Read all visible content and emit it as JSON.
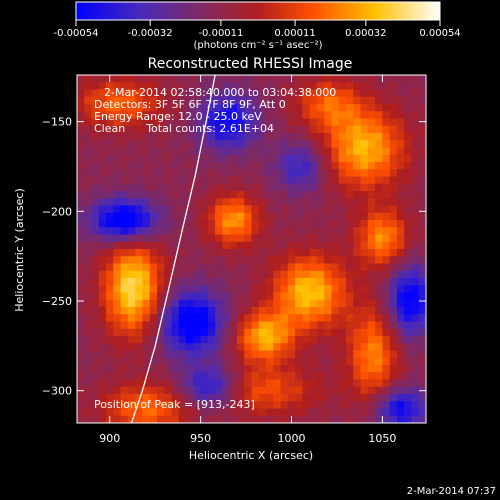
{
  "chart_data": {
    "type": "heatmap",
    "title": "Reconstructed RHESSI Image",
    "xlabel": "Heliocentric X (arcsec)",
    "ylabel": "Heliocentric Y (arcsec)",
    "xlim": [
      882,
      1074
    ],
    "ylim": [
      -318,
      -124
    ],
    "x_ticks": [
      900,
      950,
      1000,
      1050
    ],
    "y_ticks": [
      -150,
      -200,
      -250,
      -300
    ],
    "colorbar": {
      "range": [
        -0.00054,
        0.00054
      ],
      "tick_values": [
        -0.00054,
        -0.00032,
        -0.00011,
        0.00011,
        0.00032,
        0.00054
      ],
      "tick_labels": [
        "-0.00054",
        "-0.00032",
        "-0.00011",
        "0.00011",
        "0.00032",
        "0.00054"
      ],
      "unit_label": "(photons cm⁻² s⁻¹ asec⁻²)",
      "colors": [
        "#0000ff",
        "#5a1aa0",
        "#7a2a6a",
        "#b01e1e",
        "#ff5000",
        "#ffc000",
        "#ffffff"
      ]
    },
    "annotations": [
      "2-Mar-2014 02:58:40.000 to 03:04:38.000",
      "Detectors: 3F 5F 6F 7F 8F 9F, Att 0",
      "Energy Range: 12.0 - 25.0 keV",
      "Clean      Total counts: 2.61E+04"
    ],
    "peak_label": "Position of Peak = [913,-243]",
    "limb_curve": {
      "x": [
        912,
        918,
        925,
        932,
        940,
        947,
        953,
        958
      ],
      "y": [
        -318,
        -300,
        -275,
        -245,
        -210,
        -180,
        -150,
        -124
      ]
    },
    "sources": [
      {
        "x": 913,
        "y": -243,
        "rx": 16,
        "ry": 26,
        "intensity": 0.00054
      },
      {
        "x": 1040,
        "y": -165,
        "rx": 22,
        "ry": 22,
        "intensity": 0.00045
      },
      {
        "x": 1010,
        "y": -245,
        "rx": 20,
        "ry": 20,
        "intensity": 0.00048
      },
      {
        "x": 985,
        "y": -270,
        "rx": 16,
        "ry": 14,
        "intensity": 0.00044
      },
      {
        "x": 1050,
        "y": -215,
        "rx": 14,
        "ry": 16,
        "intensity": 0.00038
      },
      {
        "x": 968,
        "y": -205,
        "rx": 14,
        "ry": 14,
        "intensity": 0.0004
      },
      {
        "x": 1045,
        "y": -280,
        "rx": 14,
        "ry": 26,
        "intensity": 0.00036
      },
      {
        "x": 905,
        "y": -140,
        "rx": 24,
        "ry": 14,
        "intensity": 0.0003
      },
      {
        "x": 920,
        "y": -310,
        "rx": 24,
        "ry": 14,
        "intensity": 0.00032
      },
      {
        "x": 1020,
        "y": -140,
        "rx": 18,
        "ry": 14,
        "intensity": 0.00028
      },
      {
        "x": 985,
        "y": -300,
        "rx": 30,
        "ry": 14,
        "intensity": 0.00026
      },
      {
        "x": 908,
        "y": -205,
        "rx": 18,
        "ry": 12,
        "intensity": -0.00054
      },
      {
        "x": 965,
        "y": -150,
        "rx": 16,
        "ry": 16,
        "intensity": -0.0004
      },
      {
        "x": 945,
        "y": -262,
        "rx": 18,
        "ry": 18,
        "intensity": -0.0005
      },
      {
        "x": 1065,
        "y": -250,
        "rx": 12,
        "ry": 20,
        "intensity": -0.00045
      },
      {
        "x": 955,
        "y": -298,
        "rx": 16,
        "ry": 12,
        "intensity": -0.00038
      },
      {
        "x": 1060,
        "y": -310,
        "rx": 14,
        "ry": 12,
        "intensity": -0.0004
      },
      {
        "x": 1005,
        "y": -175,
        "rx": 14,
        "ry": 14,
        "intensity": -0.00028
      }
    ]
  },
  "timestamp": "2-Mar-2014 07:37"
}
